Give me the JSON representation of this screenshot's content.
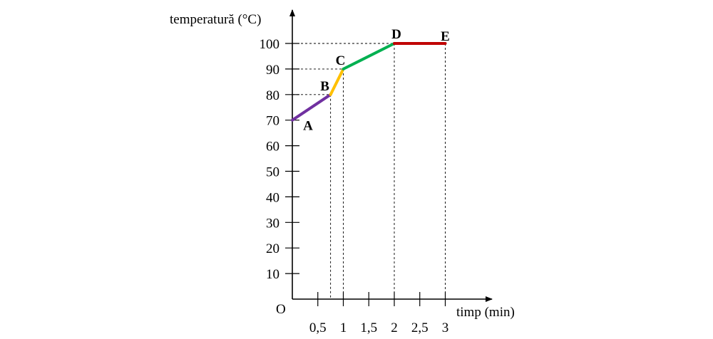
{
  "chart_data": {
    "type": "line",
    "ylabel": "temperatură (°C)",
    "xlabel": "timp (min)",
    "origin_label": "O",
    "y_ticks": [
      10,
      20,
      30,
      40,
      50,
      60,
      70,
      80,
      90,
      100
    ],
    "y_tick_labels": [
      "10",
      "20",
      "30",
      "40",
      "50",
      "60",
      "70",
      "80",
      "90",
      "100"
    ],
    "x_ticks": [
      0.5,
      1,
      1.5,
      2,
      2.5,
      3
    ],
    "x_tick_labels": [
      "0,5",
      "1",
      "1,5",
      "2",
      "2,5",
      "3"
    ],
    "points": [
      {
        "label": "A",
        "x": 0,
        "y": 70
      },
      {
        "label": "B",
        "x": 0.75,
        "y": 80
      },
      {
        "label": "C",
        "x": 1,
        "y": 90
      },
      {
        "label": "D",
        "x": 2,
        "y": 100
      },
      {
        "label": "E",
        "x": 3,
        "y": 100
      }
    ],
    "segments": [
      {
        "from": "A",
        "to": "B",
        "color": "#7030a0"
      },
      {
        "from": "B",
        "to": "C",
        "color": "#ffc000"
      },
      {
        "from": "C",
        "to": "D",
        "color": "#00b050"
      },
      {
        "from": "D",
        "to": "E",
        "color": "#c00000"
      }
    ],
    "guide_points": [
      "B",
      "C",
      "D",
      "E"
    ]
  }
}
